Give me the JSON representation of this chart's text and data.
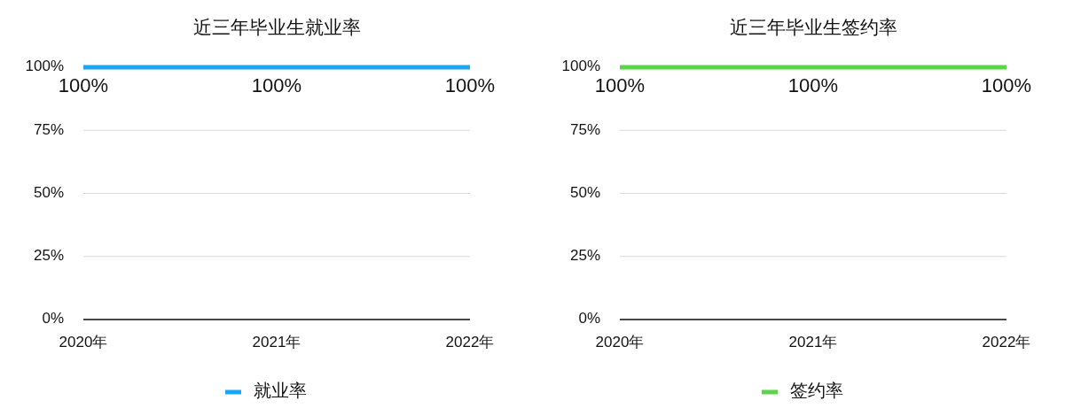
{
  "chart_data": [
    {
      "type": "line",
      "title": "近三年毕业生就业率",
      "categories": [
        "2020年",
        "2021年",
        "2022年"
      ],
      "series": [
        {
          "name": "就业率",
          "color": "#1aa5f5",
          "values": [
            100,
            100,
            100
          ],
          "value_labels": [
            "100%",
            "100%",
            "100%"
          ]
        }
      ],
      "ylim": [
        0,
        100
      ],
      "yticks": [
        {
          "value": 0,
          "label": "0%"
        },
        {
          "value": 25,
          "label": "25%"
        },
        {
          "value": 50,
          "label": "50%"
        },
        {
          "value": 75,
          "label": "75%"
        },
        {
          "value": 100,
          "label": "100%"
        }
      ],
      "grid": "y",
      "legend": "bottom"
    },
    {
      "type": "line",
      "title": "近三年毕业生签约率",
      "categories": [
        "2020年",
        "2021年",
        "2022年"
      ],
      "series": [
        {
          "name": "签约率",
          "color": "#5cd44a",
          "values": [
            100,
            100,
            100
          ],
          "value_labels": [
            "100%",
            "100%",
            "100%"
          ]
        }
      ],
      "ylim": [
        0,
        100
      ],
      "yticks": [
        {
          "value": 0,
          "label": "0%"
        },
        {
          "value": 25,
          "label": "25%"
        },
        {
          "value": 50,
          "label": "50%"
        },
        {
          "value": 75,
          "label": "75%"
        },
        {
          "value": 100,
          "label": "100%"
        }
      ],
      "grid": "y",
      "legend": "bottom"
    }
  ]
}
